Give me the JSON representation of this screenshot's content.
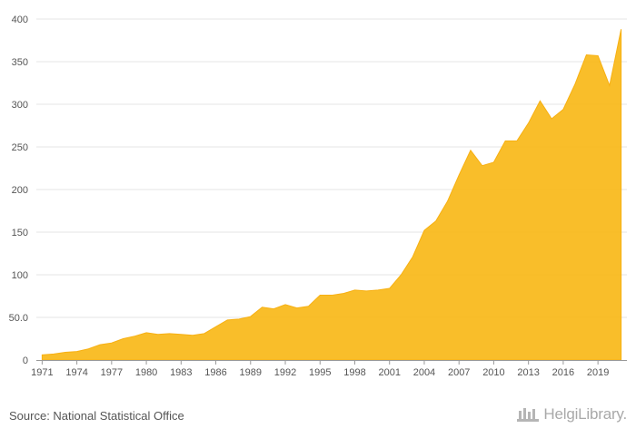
{
  "chart_data": {
    "type": "area",
    "title": "",
    "xlabel": "",
    "ylabel": "",
    "ylim": [
      0,
      400
    ],
    "y_ticks": [
      "0",
      "50.0",
      "100",
      "150",
      "200",
      "250",
      "300",
      "350",
      "400"
    ],
    "x_tick_labels": [
      "1971",
      "1974",
      "1977",
      "1980",
      "1983",
      "1986",
      "1989",
      "1992",
      "1995",
      "1998",
      "2001",
      "2004",
      "2007",
      "2010",
      "2013",
      "2016",
      "2019"
    ],
    "grid": true,
    "color": "#f9b918",
    "x": [
      1971,
      1972,
      1973,
      1974,
      1975,
      1976,
      1977,
      1978,
      1979,
      1980,
      1981,
      1982,
      1983,
      1984,
      1985,
      1986,
      1987,
      1988,
      1989,
      1990,
      1991,
      1992,
      1993,
      1994,
      1995,
      1996,
      1997,
      1998,
      1999,
      2000,
      2001,
      2002,
      2003,
      2004,
      2005,
      2006,
      2007,
      2008,
      2009,
      2010,
      2011,
      2012,
      2013,
      2014,
      2015,
      2016,
      2017,
      2018,
      2019,
      2020,
      2021
    ],
    "values": [
      6,
      7,
      9,
      10,
      13,
      18,
      20,
      25,
      28,
      32,
      30,
      31,
      30,
      29,
      31,
      39,
      47,
      48,
      51,
      62,
      60,
      65,
      61,
      63,
      76,
      76,
      78,
      82,
      81,
      82,
      84,
      100,
      121,
      152,
      163,
      186,
      217,
      246,
      228,
      232,
      257,
      257,
      278,
      304,
      283,
      294,
      323,
      358,
      357,
      322,
      388
    ]
  },
  "footer": {
    "source": "Source: National Statistical Office",
    "brand": "HelgiLibrary."
  }
}
